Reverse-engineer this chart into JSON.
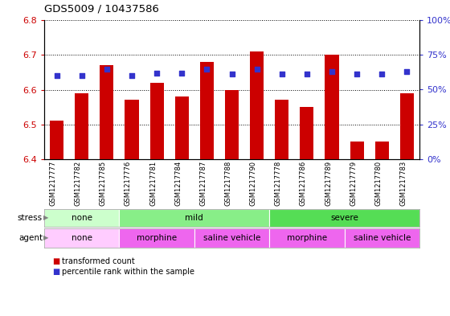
{
  "title": "GDS5009 / 10437586",
  "samples": [
    "GSM1217777",
    "GSM1217782",
    "GSM1217785",
    "GSM1217776",
    "GSM1217781",
    "GSM1217784",
    "GSM1217787",
    "GSM1217788",
    "GSM1217790",
    "GSM1217778",
    "GSM1217786",
    "GSM1217789",
    "GSM1217779",
    "GSM1217780",
    "GSM1217783"
  ],
  "bar_values": [
    6.51,
    6.59,
    6.67,
    6.57,
    6.62,
    6.58,
    6.68,
    6.6,
    6.71,
    6.57,
    6.55,
    6.7,
    6.45,
    6.45,
    6.59
  ],
  "dot_percentiles": [
    60,
    60,
    65,
    60,
    62,
    62,
    65,
    61,
    65,
    61,
    61,
    63,
    61,
    61,
    63
  ],
  "bar_bottom": 6.4,
  "ylim": [
    6.4,
    6.8
  ],
  "yticks_left": [
    6.4,
    6.5,
    6.6,
    6.7,
    6.8
  ],
  "yticks_right": [
    0,
    25,
    50,
    75,
    100
  ],
  "bar_color": "#cc0000",
  "dot_color": "#3333cc",
  "title_color": "#000000",
  "left_tick_color": "#cc0000",
  "right_tick_color": "#3333cc",
  "stress_segments": [
    {
      "label": "none",
      "start": 0,
      "end": 3,
      "color": "#ccffcc"
    },
    {
      "label": "mild",
      "start": 3,
      "end": 9,
      "color": "#88ee88"
    },
    {
      "label": "severe",
      "start": 9,
      "end": 15,
      "color": "#55dd55"
    }
  ],
  "agent_segments": [
    {
      "label": "none",
      "start": 0,
      "end": 3,
      "color": "#ffccff"
    },
    {
      "label": "morphine",
      "start": 3,
      "end": 6,
      "color": "#ee66ee"
    },
    {
      "label": "saline vehicle",
      "start": 6,
      "end": 9,
      "color": "#ee66ee"
    },
    {
      "label": "morphine",
      "start": 9,
      "end": 12,
      "color": "#ee66ee"
    },
    {
      "label": "saline vehicle",
      "start": 12,
      "end": 15,
      "color": "#ee66ee"
    }
  ],
  "bar_width": 0.55,
  "fig_width": 5.6,
  "fig_height": 3.93,
  "dpi": 100
}
